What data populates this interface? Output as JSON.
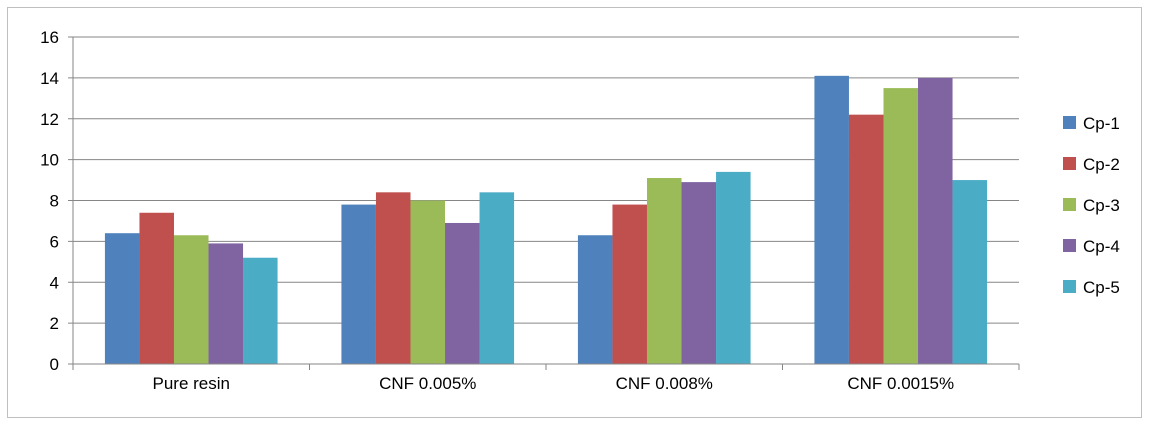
{
  "chart_data": {
    "type": "bar",
    "title": "",
    "xlabel": "",
    "ylabel": "",
    "categories": [
      "Pure resin",
      "CNF 0.005%",
      "CNF 0.008%",
      "CNF 0.0015%"
    ],
    "ylim": [
      0,
      16
    ],
    "yticks": [
      "0",
      "2",
      "4",
      "6",
      "8",
      "10",
      "12",
      "14",
      "16"
    ],
    "grid": true,
    "legend_position": "right",
    "series": [
      {
        "name": "Cp-1",
        "color": "#4f81bd",
        "values": [
          6.4,
          7.8,
          6.3,
          14.1
        ]
      },
      {
        "name": "Cp-2",
        "color": "#c0504d",
        "values": [
          7.4,
          8.4,
          7.8,
          12.2
        ]
      },
      {
        "name": "Cp-3",
        "color": "#9bbb59",
        "values": [
          6.3,
          8.0,
          9.1,
          13.5
        ]
      },
      {
        "name": "Cp-4",
        "color": "#8064a2",
        "values": [
          5.9,
          6.9,
          8.9,
          14.0
        ]
      },
      {
        "name": "Cp-5",
        "color": "#4bacc6",
        "values": [
          5.2,
          8.4,
          9.4,
          9.0
        ]
      }
    ]
  }
}
